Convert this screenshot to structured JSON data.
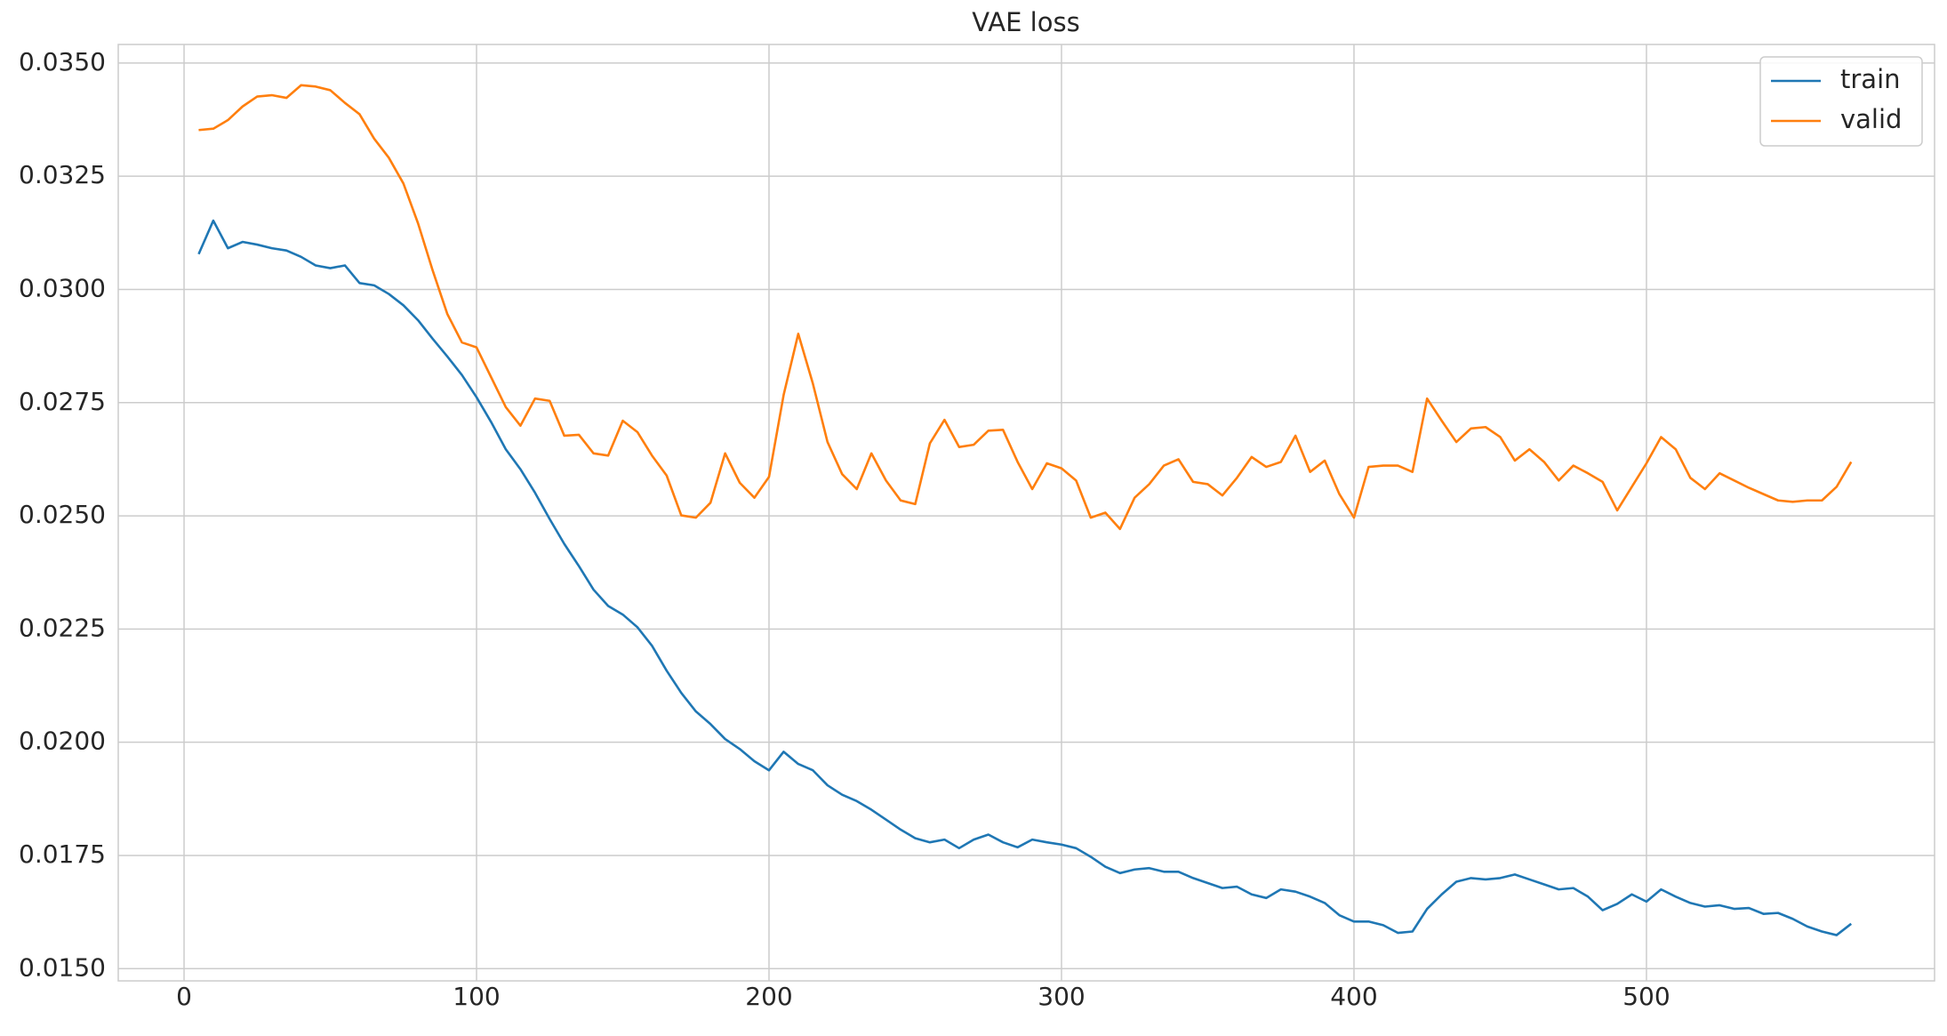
{
  "chart_data": {
    "type": "line",
    "title": "VAE loss",
    "x": [
      5,
      10,
      15,
      20,
      25,
      30,
      35,
      40,
      45,
      50,
      55,
      60,
      65,
      70,
      75,
      80,
      85,
      90,
      95,
      100,
      105,
      110,
      115,
      120,
      125,
      130,
      135,
      140,
      145,
      150,
      155,
      160,
      165,
      170,
      175,
      180,
      185,
      190,
      195,
      200,
      205,
      210,
      215,
      220,
      225,
      230,
      235,
      240,
      245,
      250,
      255,
      260,
      265,
      270,
      275,
      280,
      285,
      290,
      295,
      300,
      305,
      310,
      315,
      320,
      325,
      330,
      335,
      340,
      345,
      350,
      355,
      360,
      365,
      370,
      375,
      380,
      385,
      390,
      395,
      400,
      405,
      410,
      415,
      420,
      425,
      430,
      435,
      440,
      445,
      450,
      455,
      460,
      465,
      470,
      475,
      480,
      485,
      490,
      495,
      500,
      505,
      510,
      515,
      520,
      525,
      530,
      535,
      540,
      545,
      550,
      555,
      560,
      565,
      570
    ],
    "series": [
      {
        "name": "train",
        "color": "#1f77b4",
        "values": [
          0.03078,
          0.03152,
          0.03091,
          0.03105,
          0.03099,
          0.03091,
          0.03086,
          0.03072,
          0.03053,
          0.03047,
          0.03053,
          0.03014,
          0.03009,
          0.0299,
          0.02965,
          0.02932,
          0.02891,
          0.02852,
          0.02811,
          0.02762,
          0.02707,
          0.02647,
          0.02603,
          0.02551,
          0.02493,
          0.02438,
          0.02389,
          0.02337,
          0.02301,
          0.02282,
          0.02254,
          0.02213,
          0.02158,
          0.02109,
          0.02068,
          0.0204,
          0.02007,
          0.01985,
          0.01958,
          0.01938,
          0.01979,
          0.01952,
          0.01938,
          0.01905,
          0.01884,
          0.0187,
          0.01851,
          0.01829,
          0.01807,
          0.01788,
          0.01779,
          0.01785,
          0.01766,
          0.01785,
          0.01796,
          0.01779,
          0.01768,
          0.01785,
          0.01779,
          0.01774,
          0.01766,
          0.01747,
          0.01725,
          0.01711,
          0.01719,
          0.01722,
          0.01714,
          0.01714,
          0.017,
          0.01689,
          0.01678,
          0.01681,
          0.01664,
          0.01656,
          0.01675,
          0.0167,
          0.01659,
          0.01645,
          0.01618,
          0.01604,
          0.01604,
          0.01596,
          0.01579,
          0.01582,
          0.01632,
          0.01664,
          0.01692,
          0.017,
          0.01697,
          0.017,
          0.01708,
          0.01697,
          0.01686,
          0.01675,
          0.01678,
          0.01659,
          0.01629,
          0.01643,
          0.01664,
          0.01648,
          0.01675,
          0.01659,
          0.01645,
          0.01637,
          0.0164,
          0.01632,
          0.01634,
          0.01621,
          0.01623,
          0.0161,
          0.01593,
          0.01582,
          0.01574,
          0.01599
        ]
      },
      {
        "name": "valid",
        "color": "#ff7f0e",
        "values": [
          0.03352,
          0.03355,
          0.03374,
          0.03404,
          0.03426,
          0.03429,
          0.03423,
          0.03451,
          0.03448,
          0.0344,
          0.03412,
          0.03387,
          0.03333,
          0.03291,
          0.03234,
          0.03146,
          0.03042,
          0.02946,
          0.02883,
          0.02872,
          0.02806,
          0.0274,
          0.02699,
          0.02759,
          0.02754,
          0.02677,
          0.02679,
          0.02638,
          0.02633,
          0.0271,
          0.02685,
          0.02633,
          0.02589,
          0.02501,
          0.02496,
          0.02529,
          0.02638,
          0.02573,
          0.0254,
          0.02586,
          0.02767,
          0.02902,
          0.02792,
          0.02663,
          0.02592,
          0.02559,
          0.02638,
          0.02578,
          0.02534,
          0.02526,
          0.0266,
          0.02712,
          0.02652,
          0.02657,
          0.02688,
          0.0269,
          0.02619,
          0.02559,
          0.02616,
          0.02605,
          0.02578,
          0.02496,
          0.02507,
          0.02471,
          0.0254,
          0.0257,
          0.02611,
          0.02625,
          0.02575,
          0.0257,
          0.02545,
          0.02584,
          0.0263,
          0.02608,
          0.02619,
          0.02677,
          0.02597,
          0.02622,
          0.02548,
          0.02496,
          0.02608,
          0.02611,
          0.02611,
          0.02597,
          0.02759,
          0.0271,
          0.02663,
          0.02693,
          0.02696,
          0.02674,
          0.02622,
          0.02647,
          0.02619,
          0.02578,
          0.02611,
          0.02594,
          0.02575,
          0.02512,
          0.02564,
          0.02616,
          0.02674,
          0.02647,
          0.02584,
          0.02559,
          0.02594,
          0.02578,
          0.02562,
          0.02548,
          0.02534,
          0.02531,
          0.02534,
          0.02534,
          0.02564,
          0.02619
        ]
      }
    ],
    "xlim": [
      -22.5,
      598.5
    ],
    "ylim": [
      0.01473,
      0.03541
    ],
    "xticks": [
      0,
      100,
      200,
      300,
      400,
      500
    ],
    "yticks": [
      {
        "value": 0.015,
        "label": "0.0150"
      },
      {
        "value": 0.0175,
        "label": "0.0175"
      },
      {
        "value": 0.02,
        "label": "0.0200"
      },
      {
        "value": 0.0225,
        "label": "0.0225"
      },
      {
        "value": 0.025,
        "label": "0.0250"
      },
      {
        "value": 0.0275,
        "label": "0.0275"
      },
      {
        "value": 0.03,
        "label": "0.0300"
      },
      {
        "value": 0.0325,
        "label": "0.0325"
      },
      {
        "value": 0.035,
        "label": "0.0350"
      }
    ],
    "grid": true,
    "legend": "upper right"
  }
}
